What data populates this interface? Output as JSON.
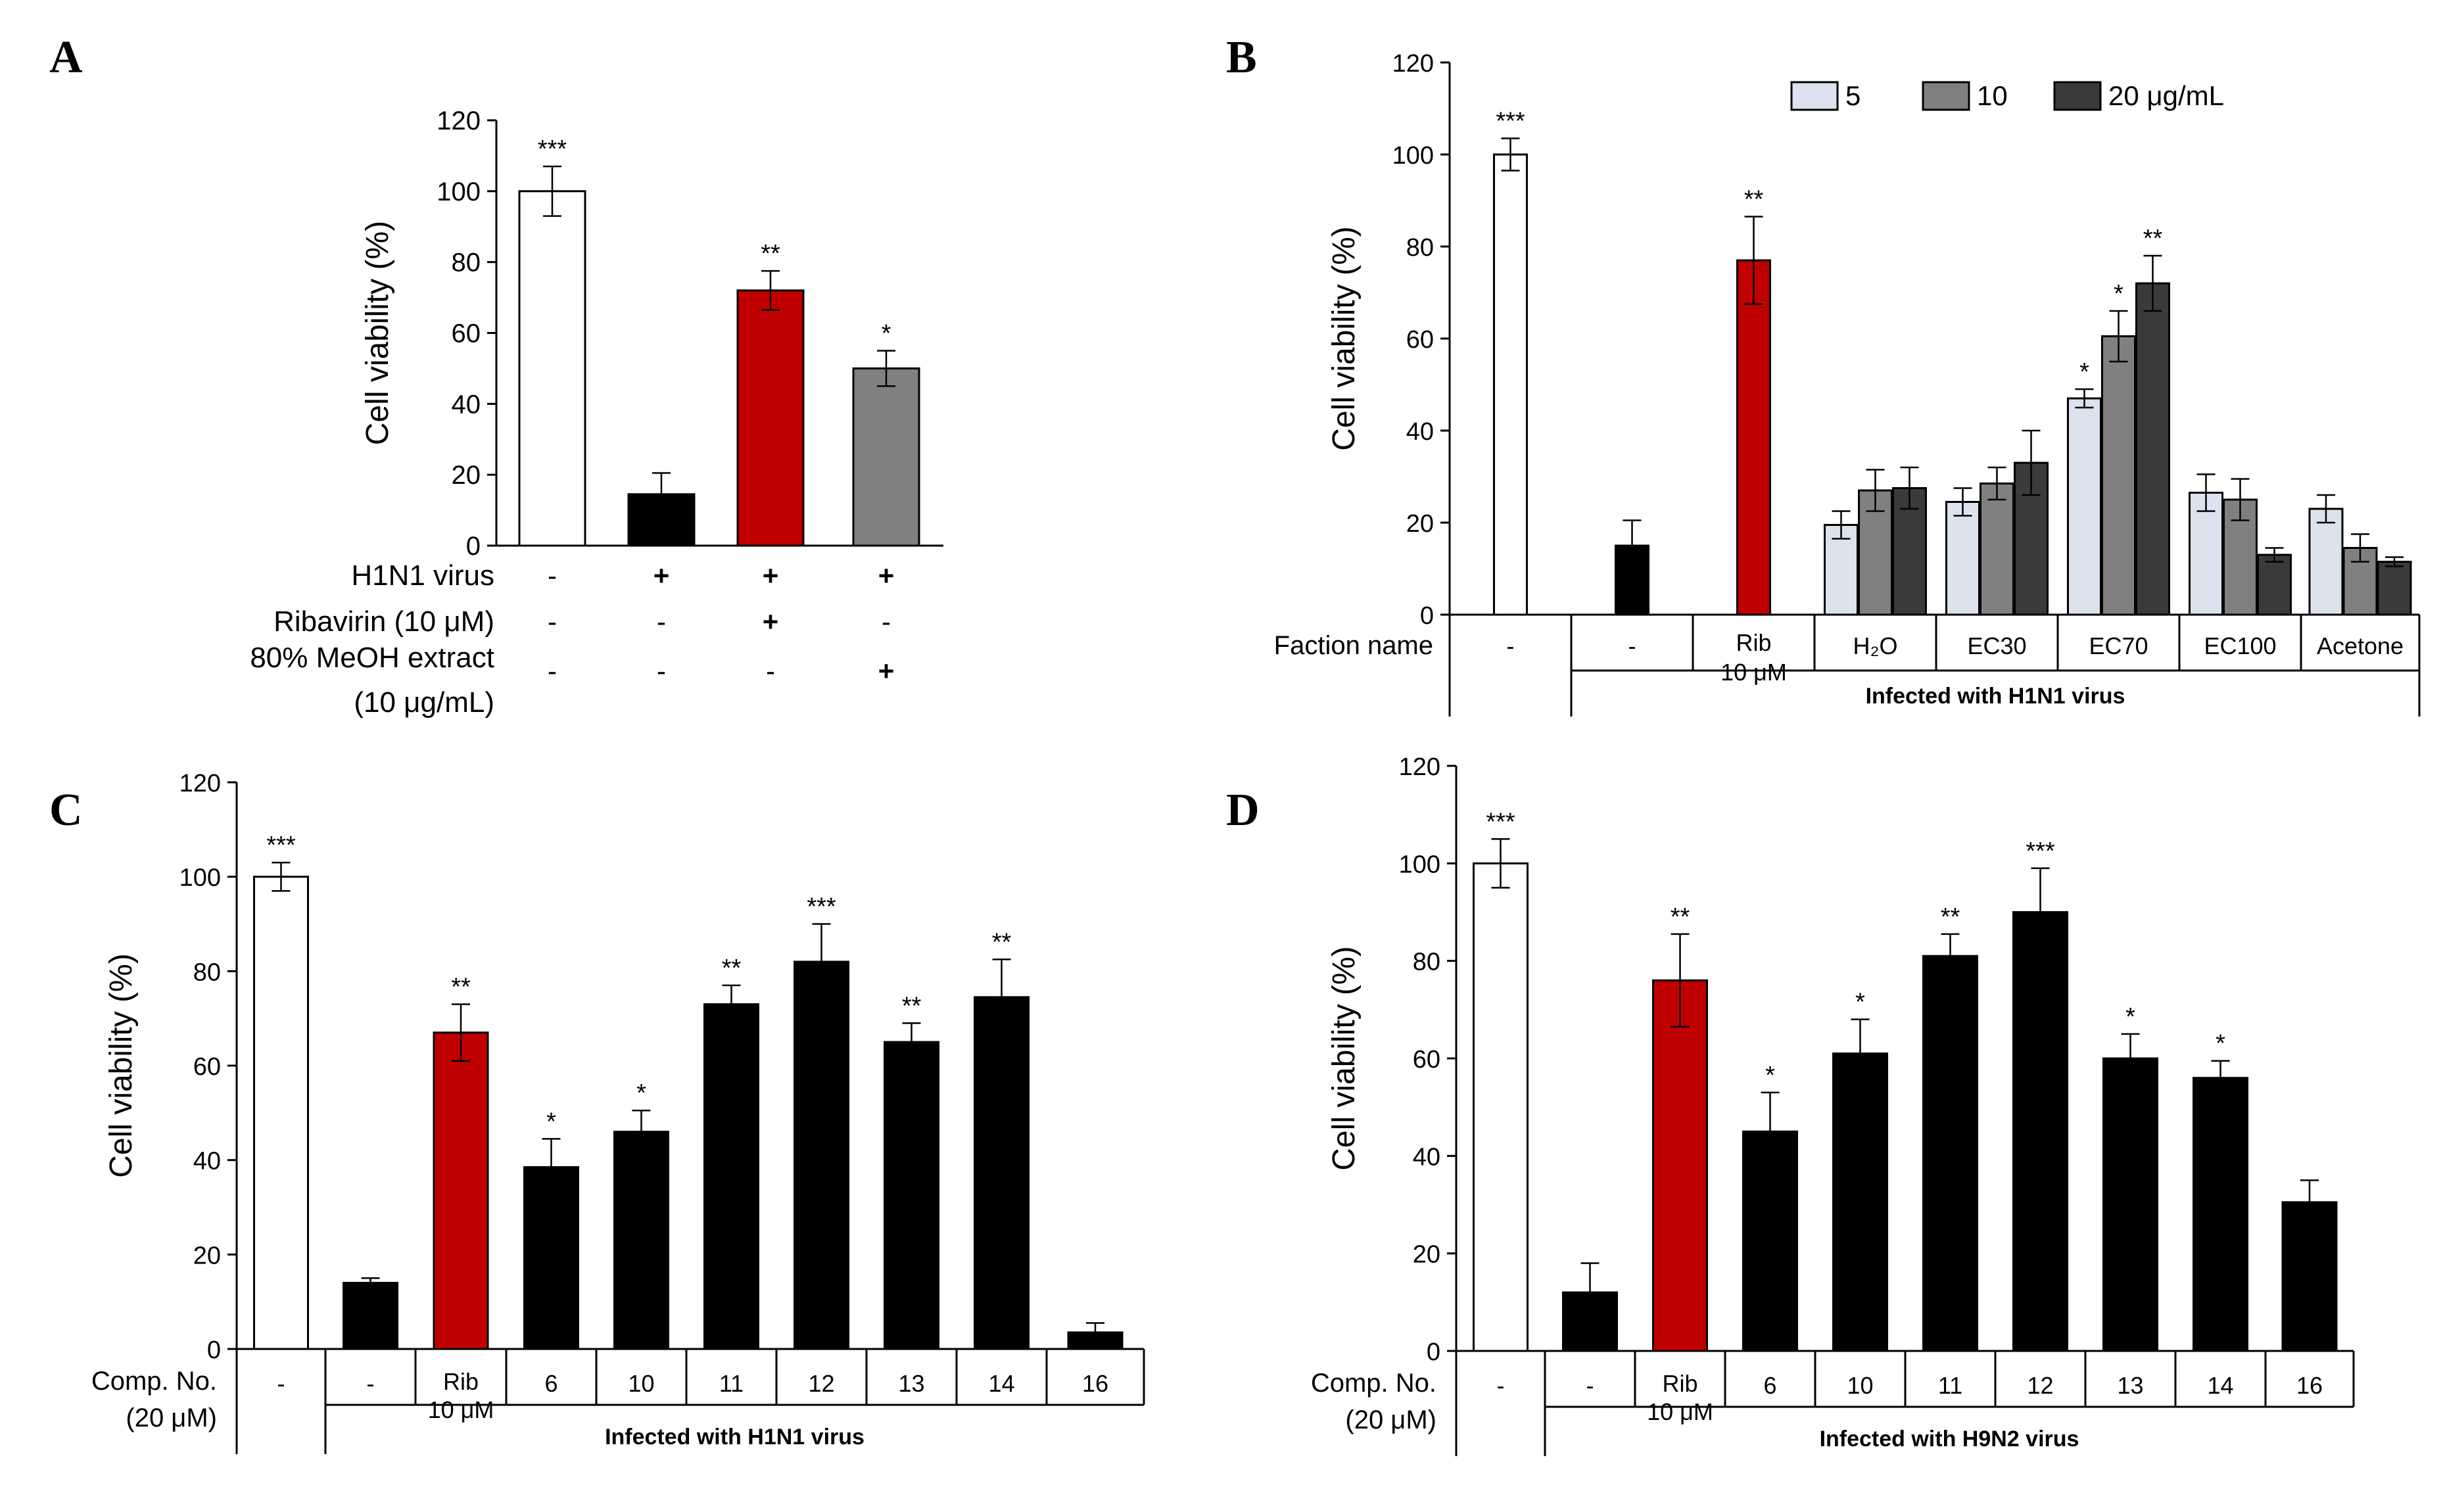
{
  "panels": [
    {
      "label": "A",
      "type": "bar",
      "ylabel": "Cell viability (%)",
      "ylim": [
        0,
        120
      ],
      "yticks": [
        0,
        20,
        40,
        60,
        80,
        100,
        120
      ],
      "bars": [
        {
          "value": 100,
          "err": 7,
          "color": "#ffffff",
          "sig": "***"
        },
        {
          "value": 14.5,
          "err": 6,
          "color": "#000000",
          "sig": ""
        },
        {
          "value": 72,
          "err": 5.5,
          "color": "#c00000",
          "sig": "**"
        },
        {
          "value": 50,
          "err": 5,
          "color": "#808080",
          "sig": "*"
        }
      ],
      "table": {
        "rows": [
          {
            "label": "H1N1 virus",
            "cells": [
              "-",
              "+",
              "+",
              "+"
            ]
          },
          {
            "label": "Ribavirin (10 μM)",
            "cells": [
              "-",
              "-",
              "+",
              "-"
            ]
          },
          {
            "label": "80% MeOH extract",
            "label2": "(10 μg/mL)",
            "cells": [
              "-",
              "-",
              "-",
              "+"
            ]
          }
        ]
      }
    },
    {
      "label": "B",
      "type": "grouped-bar",
      "ylabel": "Cell viability (%)",
      "ylim": [
        0,
        120
      ],
      "yticks": [
        0,
        20,
        40,
        60,
        80,
        100,
        120
      ],
      "legend": [
        {
          "name": "5",
          "color": "#dce3ee"
        },
        {
          "name": "10",
          "color": "#808080"
        },
        {
          "name": "20 μg/mL",
          "color": "#3a3a3a"
        }
      ],
      "row_label": "Faction name",
      "groups": [
        {
          "name": "-",
          "bars": [
            {
              "value": 100,
              "err": 3.5,
              "color": "#ffffff",
              "sig": "***"
            }
          ]
        },
        {
          "name": "-",
          "bars": [
            {
              "value": 15,
              "err": 5.5,
              "color": "#000000",
              "sig": ""
            }
          ]
        },
        {
          "name": "Rib",
          "name2": "10 μM",
          "bars": [
            {
              "value": 77,
              "err": 9.5,
              "color": "#c00000",
              "sig": "**"
            }
          ]
        },
        {
          "name": "H₂O",
          "bars": [
            {
              "value": 19.5,
              "err": 3,
              "color": "#dce3ee",
              "sig": ""
            },
            {
              "value": 27,
              "err": 4.5,
              "color": "#808080",
              "sig": ""
            },
            {
              "value": 27.5,
              "err": 4.5,
              "color": "#3a3a3a",
              "sig": ""
            }
          ]
        },
        {
          "name": "EC30",
          "bars": [
            {
              "value": 24.5,
              "err": 3,
              "color": "#dce3ee",
              "sig": ""
            },
            {
              "value": 28.5,
              "err": 3.5,
              "color": "#808080",
              "sig": ""
            },
            {
              "value": 33,
              "err": 7,
              "color": "#3a3a3a",
              "sig": ""
            }
          ]
        },
        {
          "name": "EC70",
          "bars": [
            {
              "value": 47,
              "err": 2,
              "color": "#dce3ee",
              "sig": "*"
            },
            {
              "value": 60.5,
              "err": 5.5,
              "color": "#808080",
              "sig": "*"
            },
            {
              "value": 72,
              "err": 6,
              "color": "#3a3a3a",
              "sig": "**"
            }
          ]
        },
        {
          "name": "EC100",
          "bars": [
            {
              "value": 26.5,
              "err": 4,
              "color": "#dce3ee",
              "sig": ""
            },
            {
              "value": 25,
              "err": 4.5,
              "color": "#808080",
              "sig": ""
            },
            {
              "value": 13,
              "err": 1.5,
              "color": "#3a3a3a",
              "sig": ""
            }
          ]
        },
        {
          "name": "Acetone",
          "bars": [
            {
              "value": 23,
              "err": 3,
              "color": "#dce3ee",
              "sig": ""
            },
            {
              "value": 14.5,
              "err": 3,
              "color": "#808080",
              "sig": ""
            },
            {
              "value": 11.5,
              "err": 1,
              "color": "#3a3a3a",
              "sig": ""
            }
          ]
        }
      ],
      "infected_label": "Infected with H1N1 virus"
    },
    {
      "label": "C",
      "type": "bar",
      "ylabel": "Cell viability (%)",
      "ylim": [
        0,
        120
      ],
      "yticks": [
        0,
        20,
        40,
        60,
        80,
        100,
        120
      ],
      "row_label": "Comp. No.",
      "row_label2": "(20 μM)",
      "categories": [
        "-",
        "-",
        "Rib",
        "6",
        "10",
        "11",
        "12",
        "13",
        "14",
        "16"
      ],
      "category_sub": {
        "2": "10 μM"
      },
      "bars": [
        {
          "value": 100,
          "err": 3,
          "color": "#ffffff",
          "sig": "***"
        },
        {
          "value": 14,
          "err": 1,
          "color": "#000000",
          "sig": ""
        },
        {
          "value": 67,
          "err": 6,
          "color": "#c00000",
          "sig": "**"
        },
        {
          "value": 38.5,
          "err": 6,
          "color": "#000000",
          "sig": "*"
        },
        {
          "value": 46,
          "err": 4.5,
          "color": "#000000",
          "sig": "*"
        },
        {
          "value": 73,
          "err": 4,
          "color": "#000000",
          "sig": "**"
        },
        {
          "value": 82,
          "err": 8,
          "color": "#000000",
          "sig": "***"
        },
        {
          "value": 65,
          "err": 4,
          "color": "#000000",
          "sig": "**"
        },
        {
          "value": 74.5,
          "err": 8,
          "color": "#000000",
          "sig": "**"
        },
        {
          "value": 3.5,
          "err": 2,
          "color": "#000000",
          "sig": ""
        }
      ],
      "infected_label": "Infected with H1N1 virus"
    },
    {
      "label": "D",
      "type": "bar",
      "ylabel": "Cell viability (%)",
      "ylim": [
        0,
        120
      ],
      "yticks": [
        0,
        20,
        40,
        60,
        80,
        100,
        120
      ],
      "row_label": "Comp. No.",
      "row_label2": "(20 μM)",
      "categories": [
        "-",
        "-",
        "Rib",
        "6",
        "10",
        "11",
        "12",
        "13",
        "14",
        "16"
      ],
      "category_sub": {
        "2": "10 μM"
      },
      "bars": [
        {
          "value": 100,
          "err": 5,
          "color": "#ffffff",
          "sig": "***"
        },
        {
          "value": 12,
          "err": 6,
          "color": "#000000",
          "sig": ""
        },
        {
          "value": 76,
          "err": 9.5,
          "color": "#c00000",
          "sig": "**"
        },
        {
          "value": 45,
          "err": 8,
          "color": "#000000",
          "sig": "*"
        },
        {
          "value": 61,
          "err": 7,
          "color": "#000000",
          "sig": "*"
        },
        {
          "value": 81,
          "err": 4.5,
          "color": "#000000",
          "sig": "**"
        },
        {
          "value": 90,
          "err": 9,
          "color": "#000000",
          "sig": "***"
        },
        {
          "value": 60,
          "err": 5,
          "color": "#000000",
          "sig": "*"
        },
        {
          "value": 56,
          "err": 3.5,
          "color": "#000000",
          "sig": "*"
        },
        {
          "value": 30.5,
          "err": 4.5,
          "color": "#000000",
          "sig": ""
        }
      ],
      "infected_label": "Infected with H9N2 virus"
    }
  ]
}
